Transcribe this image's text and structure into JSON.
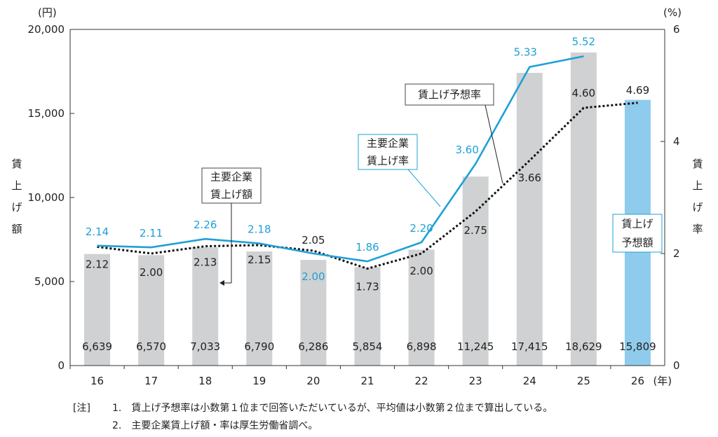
{
  "chart_data": {
    "type": "bar+line",
    "categories": [
      "16",
      "17",
      "18",
      "19",
      "20",
      "21",
      "22",
      "23",
      "24",
      "25",
      "26"
    ],
    "x_unit": "(年)",
    "bars": {
      "name": "主要企業賃上げ額",
      "values": [
        6639,
        6570,
        7033,
        6790,
        6286,
        5854,
        6898,
        11245,
        17415,
        18629,
        15809
      ],
      "labels": [
        "6,639",
        "6,570",
        "7,033",
        "6,790",
        "6,286",
        "5,854",
        "6,898",
        "11,245",
        "17,415",
        "18,629",
        "15,809"
      ],
      "color": "#d0d1d3",
      "highlight_color": "#8fcbec",
      "highlight_index": 10
    },
    "line_actual": {
      "name": "主要企業賃上げ率",
      "values": [
        2.14,
        2.11,
        2.26,
        2.18,
        2.0,
        1.86,
        2.2,
        3.6,
        5.33,
        5.52,
        null
      ],
      "labels": [
        "2.14",
        "2.11",
        "2.26",
        "2.18",
        "2.00",
        "1.86",
        "2.20",
        "3.60",
        "5.33",
        "5.52",
        ""
      ],
      "color": "#1ea0d6"
    },
    "line_forecast": {
      "name": "賃上げ予想率",
      "values": [
        2.12,
        2.0,
        2.13,
        2.15,
        2.05,
        1.73,
        2.0,
        2.75,
        3.66,
        4.6,
        4.69
      ],
      "labels": [
        "2.12",
        "2.00",
        "2.13",
        "2.15",
        "2.05",
        "1.73",
        "2.00",
        "2.75",
        "3.66",
        "4.60",
        "4.69"
      ],
      "color": "#111111",
      "style": "dotted"
    },
    "y_left": {
      "unit": "(円)",
      "label": [
        "賃",
        "上",
        "げ",
        "額"
      ],
      "ylim": [
        0,
        20000
      ],
      "ticks": [
        "0",
        "5,000",
        "10,000",
        "15,000",
        "20,000"
      ],
      "tick_values": [
        0,
        5000,
        10000,
        15000,
        20000
      ]
    },
    "y_right": {
      "unit": "(%)",
      "label": [
        "賃",
        "上",
        "げ",
        "率"
      ],
      "ylim": [
        0,
        6
      ],
      "ticks": [
        "0",
        "2",
        "4",
        "6"
      ],
      "tick_values": [
        0,
        2,
        4,
        6
      ]
    },
    "callouts": {
      "amount": [
        "主要企業",
        "賃上げ額"
      ],
      "rate": [
        "主要企業",
        "賃上げ率"
      ],
      "forecast": [
        "賃上げ予想率"
      ],
      "forecast_amount": [
        "賃上げ",
        "予想額"
      ]
    },
    "grid": false
  },
  "notes": {
    "prefix": "[注]",
    "items": [
      "1.　賃上げ予想率は小数第１位まで回答いただいているが、平均値は小数第２位まで算出している。",
      "2.　主要企業賃上げ額・率は厚生労働省調べ。"
    ]
  }
}
